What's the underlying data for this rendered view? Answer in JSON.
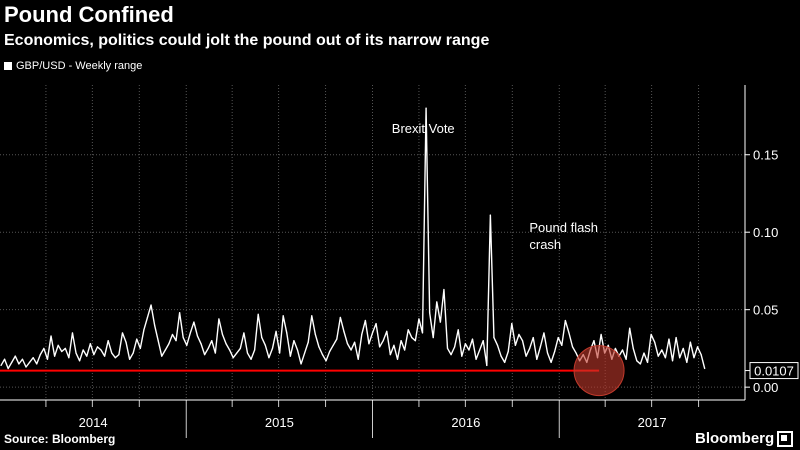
{
  "header": {
    "title": "Pound Confined",
    "subtitle": "Economics, politics could jolt the pound out of its narrow range"
  },
  "footer": {
    "source": "Source: Bloomberg",
    "brand": "Bloomberg"
  },
  "colors": {
    "background": "#000000",
    "line": "#ffffff",
    "reference_line": "#ff0000",
    "highlight_circle": "#c0392b"
  },
  "chart_data": {
    "type": "line",
    "title": "Pound Confined",
    "subtitle": "Economics, politics could jolt the pound out of its narrow range",
    "xlabel": "",
    "ylabel": "",
    "legend": {
      "entries": [
        "GBP/USD - Weekly range"
      ],
      "placement": "top-left"
    },
    "x_ticks": [
      "2014",
      "2015",
      "2016",
      "2017"
    ],
    "y_ticks": [
      {
        "value": 0.0,
        "label": "0.00"
      },
      {
        "value": 0.05,
        "label": "0.05"
      },
      {
        "value": 0.1,
        "label": "0.10"
      },
      {
        "value": 0.15,
        "label": "0.15"
      }
    ],
    "ylim": [
      -0.007,
      0.195
    ],
    "xlim": [
      "2014-01-01",
      "2017-12-31"
    ],
    "grid": true,
    "y_axis_side": "right",
    "reference_line": {
      "value": 0.0107,
      "label": "0.0107",
      "x_start": "2014-01-01",
      "x_end": "2017-03-20"
    },
    "annotations": [
      {
        "text_lines": [
          "Brexit Vote"
        ],
        "x": "2016-06-24"
      },
      {
        "text_lines": [
          "Pound flash",
          "crash"
        ],
        "x": "2016-10-07"
      }
    ],
    "series": [
      {
        "name": "GBP/USD - Weekly range",
        "start_date": "2014-01-03",
        "interval_days": 7,
        "values": [
          0.014,
          0.018,
          0.012,
          0.016,
          0.02,
          0.015,
          0.018,
          0.013,
          0.016,
          0.019,
          0.015,
          0.021,
          0.025,
          0.018,
          0.033,
          0.02,
          0.027,
          0.023,
          0.025,
          0.019,
          0.035,
          0.022,
          0.017,
          0.024,
          0.02,
          0.028,
          0.021,
          0.026,
          0.024,
          0.02,
          0.03,
          0.022,
          0.019,
          0.021,
          0.035,
          0.029,
          0.018,
          0.022,
          0.031,
          0.025,
          0.037,
          0.045,
          0.053,
          0.04,
          0.03,
          0.02,
          0.024,
          0.028,
          0.034,
          0.03,
          0.048,
          0.032,
          0.027,
          0.035,
          0.042,
          0.033,
          0.028,
          0.021,
          0.025,
          0.03,
          0.022,
          0.044,
          0.034,
          0.028,
          0.024,
          0.019,
          0.022,
          0.025,
          0.035,
          0.022,
          0.018,
          0.024,
          0.047,
          0.032,
          0.027,
          0.019,
          0.025,
          0.036,
          0.022,
          0.046,
          0.035,
          0.02,
          0.03,
          0.024,
          0.015,
          0.022,
          0.029,
          0.046,
          0.034,
          0.026,
          0.021,
          0.017,
          0.023,
          0.027,
          0.031,
          0.045,
          0.036,
          0.028,
          0.024,
          0.029,
          0.018,
          0.034,
          0.043,
          0.028,
          0.035,
          0.041,
          0.026,
          0.03,
          0.036,
          0.021,
          0.027,
          0.018,
          0.03,
          0.024,
          0.037,
          0.032,
          0.03,
          0.044,
          0.035,
          0.18,
          0.048,
          0.032,
          0.055,
          0.042,
          0.063,
          0.025,
          0.021,
          0.026,
          0.037,
          0.02,
          0.028,
          0.024,
          0.031,
          0.018,
          0.024,
          0.03,
          0.014,
          0.111,
          0.032,
          0.027,
          0.02,
          0.016,
          0.023,
          0.041,
          0.027,
          0.034,
          0.03,
          0.02,
          0.025,
          0.032,
          0.018,
          0.026,
          0.035,
          0.022,
          0.016,
          0.023,
          0.032,
          0.027,
          0.043,
          0.035,
          0.026,
          0.022,
          0.017,
          0.021,
          0.016,
          0.024,
          0.03,
          0.019,
          0.034,
          0.022,
          0.027,
          0.018,
          0.025,
          0.02,
          0.024,
          0.018,
          0.038,
          0.025,
          0.017,
          0.015,
          0.022,
          0.016,
          0.034,
          0.029,
          0.02,
          0.024,
          0.019,
          0.031,
          0.017,
          0.032,
          0.019,
          0.025,
          0.016,
          0.029,
          0.019,
          0.026,
          0.021,
          0.012
        ]
      }
    ]
  }
}
